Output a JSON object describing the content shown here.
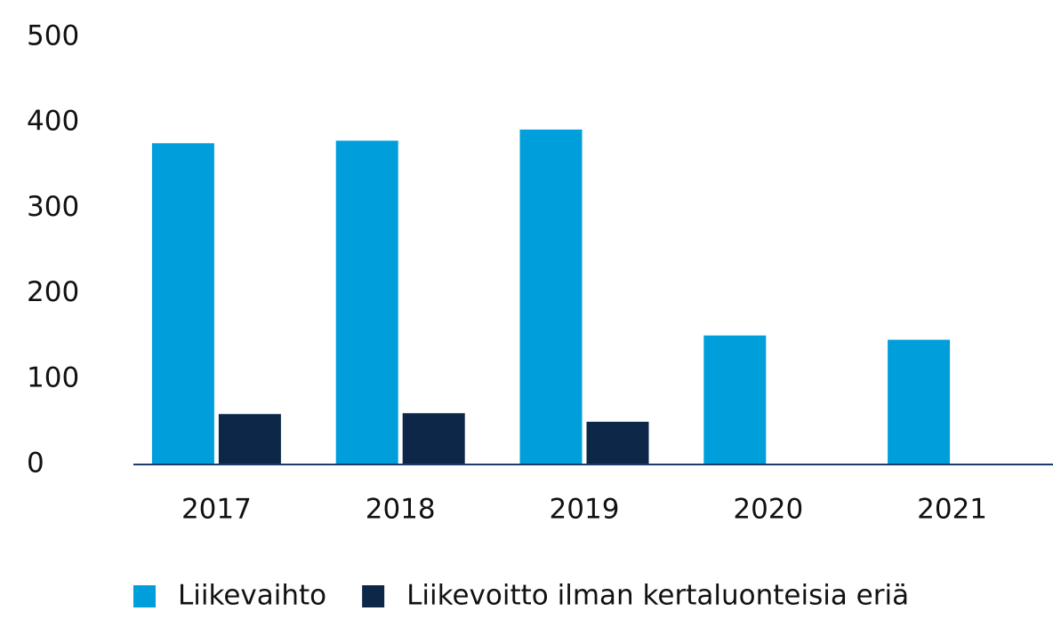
{
  "chart_data": {
    "type": "bar",
    "categories": [
      "2017",
      "2018",
      "2019",
      "2020",
      "2021"
    ],
    "series": [
      {
        "name": "Liikevaihto",
        "color": "#009fdb",
        "values": [
          376,
          379,
          392,
          151,
          146
        ]
      },
      {
        "name": "Liikevoitto ilman kertaluonteisia eriä",
        "color": "#0c2748",
        "values": [
          59,
          60,
          50,
          null,
          null
        ]
      }
    ],
    "ylim": [
      0,
      500
    ],
    "yticks": [
      0,
      100,
      200,
      300,
      400,
      500
    ],
    "grid": false,
    "legend": "bottom"
  }
}
